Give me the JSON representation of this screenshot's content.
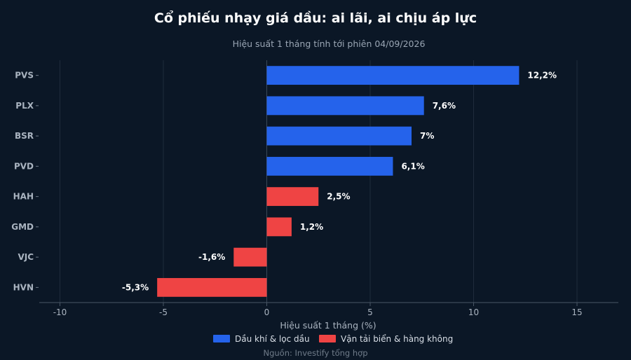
{
  "chart_data": {
    "type": "bar",
    "orientation": "horizontal",
    "title": "Cổ phiếu nhạy giá dầu: ai lãi, ai chịu áp lực",
    "subtitle": "Hiệu suất 1 tháng tính tới phiên 04/09/2026",
    "xlabel": "Hiệu suất 1 tháng (%)",
    "ylabel": "",
    "xlim": [
      -11,
      17
    ],
    "xticks": [
      -10,
      -5,
      0,
      5,
      10,
      15
    ],
    "grid": "vertical",
    "legend_position": "bottom",
    "source": "Nguồn: Investify tổng hợp",
    "series": [
      {
        "name": "Dầu khí & lọc dầu",
        "color": "#2563eb"
      },
      {
        "name": "Vận tải biển & hàng không",
        "color": "#ef4444"
      }
    ],
    "bars": [
      {
        "category": "PVS",
        "value": 12.2,
        "label": "12,2%",
        "series": 0
      },
      {
        "category": "PLX",
        "value": 7.6,
        "label": "7,6%",
        "series": 0
      },
      {
        "category": "BSR",
        "value": 7.0,
        "label": "7%",
        "series": 0
      },
      {
        "category": "PVD",
        "value": 6.1,
        "label": "6,1%",
        "series": 0
      },
      {
        "category": "HAH",
        "value": 2.5,
        "label": "2,5%",
        "series": 1
      },
      {
        "category": "GMD",
        "value": 1.2,
        "label": "1,2%",
        "series": 1
      },
      {
        "category": "VJC",
        "value": -1.6,
        "label": "-1,6%",
        "series": 1
      },
      {
        "category": "HVN",
        "value": -5.3,
        "label": "-5,3%",
        "series": 1
      }
    ]
  }
}
